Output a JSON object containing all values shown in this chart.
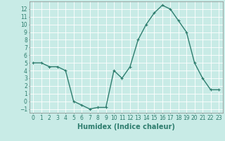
{
  "x": [
    0,
    1,
    2,
    3,
    4,
    5,
    6,
    7,
    8,
    9,
    10,
    11,
    12,
    13,
    14,
    15,
    16,
    17,
    18,
    19,
    20,
    21,
    22,
    23
  ],
  "y": [
    5,
    5,
    4.5,
    4.5,
    4,
    0,
    -0.5,
    -1,
    -0.8,
    -0.8,
    4,
    3,
    4.5,
    8,
    10,
    11.5,
    12.5,
    12,
    10.5,
    9,
    5,
    3,
    1.5,
    1.5
  ],
  "line_color": "#2e7d6e",
  "marker": "+",
  "bg_color": "#c8ebe6",
  "grid_color": "#ffffff",
  "xlabel": "Humidex (Indice chaleur)",
  "xlabel_fontsize": 7,
  "ylim": [
    -1.5,
    13
  ],
  "xlim": [
    -0.5,
    23.5
  ],
  "yticks": [
    -1,
    0,
    1,
    2,
    3,
    4,
    5,
    6,
    7,
    8,
    9,
    10,
    11,
    12
  ],
  "xticks": [
    0,
    1,
    2,
    3,
    4,
    5,
    6,
    7,
    8,
    9,
    10,
    11,
    12,
    13,
    14,
    15,
    16,
    17,
    18,
    19,
    20,
    21,
    22,
    23
  ],
  "tick_fontsize": 5.5,
  "line_width": 1.0,
  "marker_size": 3
}
